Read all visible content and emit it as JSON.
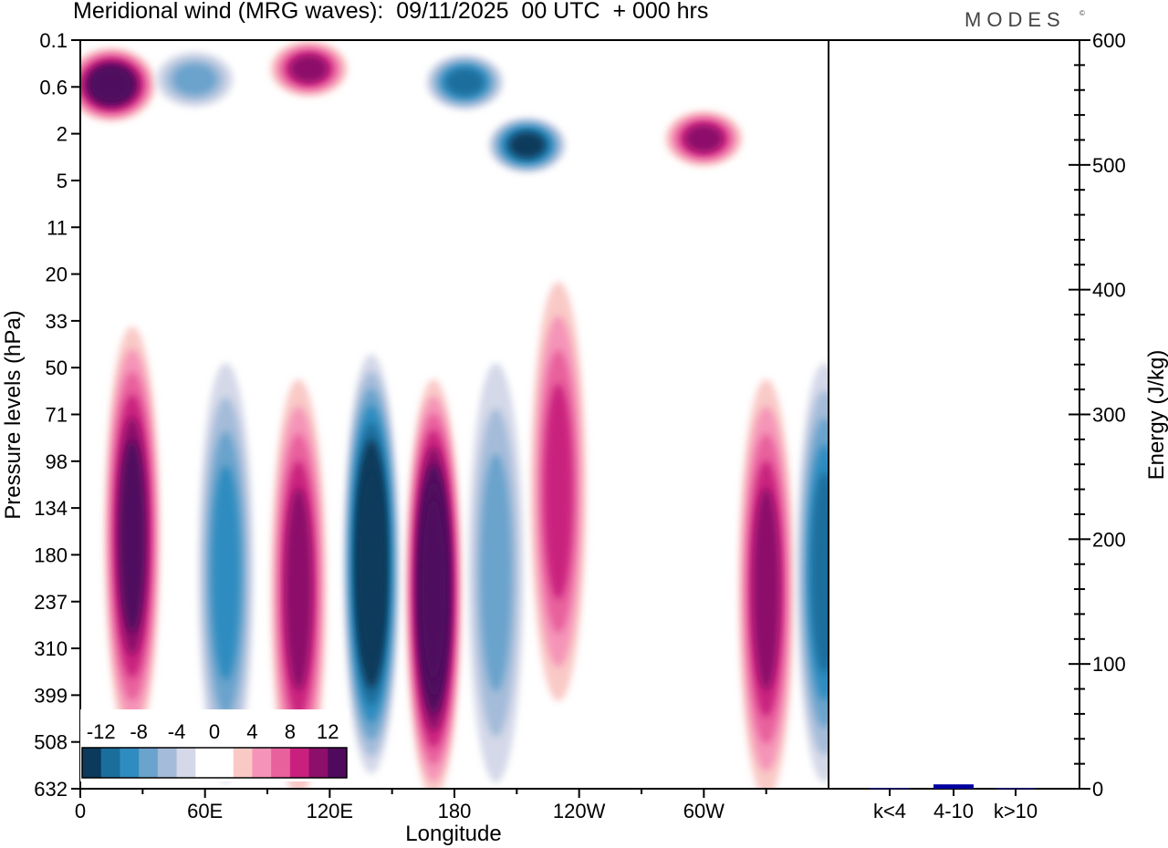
{
  "title": "Meridional wind (MRG waves):  09/11/2025  00 UTC  + 000 hrs",
  "brand": "MODES",
  "brand_mark": "©",
  "chart_data": [
    {
      "type": "heatmap",
      "name": "meridional-wind-contour",
      "xlabel": "Longitude",
      "ylabel": "Pressure levels (hPa)",
      "x_ticks": [
        "0",
        "60E",
        "120E",
        "180",
        "120W",
        "60W"
      ],
      "x_range_deg": [
        0,
        360
      ],
      "y_ticks": [
        "0.1",
        "0.6",
        "2",
        "5",
        "11",
        "20",
        "33",
        "50",
        "71",
        "98",
        "134",
        "180",
        "237",
        "310",
        "399",
        "508",
        "632"
      ],
      "colorbar": {
        "labels": [
          "-12",
          "-8",
          "-4",
          "0",
          "4",
          "8",
          "12"
        ],
        "levels": [
          -14,
          -12,
          -10,
          -8,
          -6,
          -4,
          -2,
          0,
          2,
          4,
          6,
          8,
          10,
          12,
          14
        ],
        "colors": [
          "#0b3a5c",
          "#1a6e9c",
          "#2f8cc0",
          "#6aa3cc",
          "#a4bcd9",
          "#d4d8e8",
          "#ffffff",
          "#ffffff",
          "#f9c9c6",
          "#f594b8",
          "#e8609c",
          "#c9207e",
          "#8c0f6b",
          "#4f0a5e"
        ]
      },
      "features": [
        {
          "lon": 15,
          "p": 0.55,
          "value": 14,
          "extent": "strong"
        },
        {
          "lon": 55,
          "p": 0.45,
          "value": -6,
          "extent": "moderate"
        },
        {
          "lon": 110,
          "p": 0.3,
          "value": 10,
          "extent": "moderate"
        },
        {
          "lon": 185,
          "p": 0.5,
          "value": -10,
          "extent": "moderate"
        },
        {
          "lon": 215,
          "p": 2.5,
          "value": -12,
          "extent": "moderate"
        },
        {
          "lon": 300,
          "p": 2.2,
          "value": 10,
          "extent": "moderate"
        },
        {
          "lon": 25,
          "p": 160,
          "value": 11,
          "extent": "column"
        },
        {
          "lon": 70,
          "p": 200,
          "value": -7,
          "extent": "column"
        },
        {
          "lon": 105,
          "p": 220,
          "value": 9,
          "extent": "column"
        },
        {
          "lon": 140,
          "p": 190,
          "value": -15,
          "extent": "column"
        },
        {
          "lon": 170,
          "p": 220,
          "value": 15,
          "extent": "column"
        },
        {
          "lon": 200,
          "p": 200,
          "value": -6,
          "extent": "column"
        },
        {
          "lon": 230,
          "p": 120,
          "value": 8,
          "extent": "column"
        },
        {
          "lon": 330,
          "p": 220,
          "value": 10,
          "extent": "column"
        },
        {
          "lon": 358,
          "p": 200,
          "value": -9,
          "extent": "column"
        }
      ]
    },
    {
      "type": "bar",
      "name": "energy-by-wavenumber",
      "categories": [
        "k<4",
        "4-10",
        "k>10"
      ],
      "values": [
        0.5,
        3.5,
        0.5
      ],
      "ylabel": "Energy (J/kg)",
      "ylim": [
        0,
        600
      ],
      "y_ticks": [
        "0",
        "100",
        "200",
        "300",
        "400",
        "500",
        "600"
      ],
      "bar_color": "#0000a0"
    }
  ]
}
